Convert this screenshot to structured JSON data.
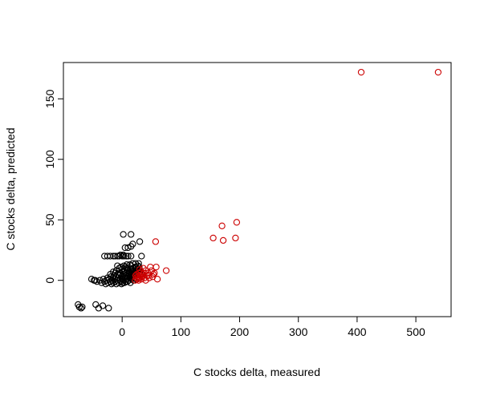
{
  "chart_data": {
    "type": "scatter",
    "title": "",
    "xlabel": "C stocks delta, measured",
    "ylabel": "C stocks delta, predicted",
    "xlim": [
      -100,
      560
    ],
    "ylim": [
      -30,
      180
    ],
    "x_ticks": [
      0,
      100,
      200,
      300,
      400,
      500
    ],
    "y_ticks": [
      0,
      50,
      100,
      150
    ],
    "grid": false,
    "legend": "none",
    "colors": {
      "black": "#000000",
      "red": "#cc0000"
    },
    "series": [
      {
        "color": "black",
        "points": [
          [
            -75,
            -20
          ],
          [
            -73,
            -22
          ],
          [
            -70,
            -23
          ],
          [
            -68,
            -22
          ],
          [
            -45,
            -20
          ],
          [
            -40,
            -23
          ],
          [
            -33,
            -21
          ],
          [
            -23,
            -23
          ],
          [
            -52,
            1
          ],
          [
            -48,
            0
          ],
          [
            -46,
            0
          ],
          [
            -43,
            -1
          ],
          [
            -38,
            0
          ],
          [
            -35,
            -2
          ],
          [
            -32,
            1
          ],
          [
            -30,
            -1
          ],
          [
            -28,
            -3
          ],
          [
            -26,
            0
          ],
          [
            -25,
            2
          ],
          [
            -24,
            -2
          ],
          [
            -22,
            1
          ],
          [
            -20,
            -1
          ],
          [
            -19,
            3
          ],
          [
            -18,
            -3
          ],
          [
            -17,
            0
          ],
          [
            -16,
            2
          ],
          [
            -15,
            -2
          ],
          [
            -14,
            4
          ],
          [
            -13,
            1
          ],
          [
            -12,
            -1
          ],
          [
            -11,
            3
          ],
          [
            -10,
            -3
          ],
          [
            -9,
            0
          ],
          [
            -8,
            5
          ],
          [
            -7,
            2
          ],
          [
            -6,
            -2
          ],
          [
            -5,
            4
          ],
          [
            -4,
            0
          ],
          [
            -3,
            6
          ],
          [
            -2,
            -1
          ],
          [
            -1,
            3
          ],
          [
            0,
            1
          ],
          [
            1,
            -2
          ],
          [
            2,
            5
          ],
          [
            3,
            0
          ],
          [
            4,
            7
          ],
          [
            5,
            2
          ],
          [
            6,
            -1
          ],
          [
            7,
            4
          ],
          [
            8,
            1
          ],
          [
            9,
            8
          ],
          [
            10,
            3
          ],
          [
            11,
            0
          ],
          [
            12,
            6
          ],
          [
            13,
            2
          ],
          [
            14,
            9
          ],
          [
            15,
            4
          ],
          [
            16,
            1
          ],
          [
            17,
            7
          ],
          [
            18,
            3
          ],
          [
            19,
            10
          ],
          [
            20,
            5
          ],
          [
            21,
            2
          ],
          [
            22,
            8
          ],
          [
            23,
            4
          ],
          [
            24,
            11
          ],
          [
            25,
            6
          ],
          [
            26,
            3
          ],
          [
            27,
            9
          ],
          [
            28,
            5
          ],
          [
            29,
            11
          ],
          [
            30,
            7
          ],
          [
            31,
            4
          ],
          [
            -10,
            8
          ],
          [
            -5,
            10
          ],
          [
            0,
            9
          ],
          [
            5,
            11
          ],
          [
            10,
            10
          ],
          [
            15,
            12
          ],
          [
            -8,
            12
          ],
          [
            -3,
            6
          ],
          [
            2,
            8
          ],
          [
            7,
            10
          ],
          [
            12,
            7
          ],
          [
            17,
            9
          ],
          [
            22,
            11
          ],
          [
            27,
            12
          ],
          [
            -1,
            -3
          ],
          [
            4,
            -2
          ],
          [
            9,
            -1
          ],
          [
            14,
            -2
          ],
          [
            19,
            0
          ],
          [
            24,
            1
          ],
          [
            29,
            2
          ],
          [
            33,
            5
          ],
          [
            -20,
            5
          ],
          [
            -15,
            7
          ],
          [
            -6,
            5
          ],
          [
            1,
            4
          ],
          [
            6,
            6
          ],
          [
            11,
            4
          ],
          [
            16,
            5
          ],
          [
            21,
            6
          ],
          [
            26,
            8
          ],
          [
            -12,
            6
          ],
          [
            -2,
            11
          ],
          [
            3,
            12
          ],
          [
            8,
            13
          ],
          [
            13,
            13
          ],
          [
            18,
            14
          ],
          [
            23,
            14
          ],
          [
            28,
            14
          ],
          [
            -30,
            20
          ],
          [
            -25,
            20
          ],
          [
            -20,
            20
          ],
          [
            -15,
            20
          ],
          [
            -12,
            20
          ],
          [
            -8,
            20
          ],
          [
            -5,
            20
          ],
          [
            0,
            20
          ],
          [
            3,
            20
          ],
          [
            7,
            20
          ],
          [
            10,
            20
          ],
          [
            15,
            20
          ],
          [
            -3,
            21
          ],
          [
            2,
            21
          ],
          [
            33,
            20
          ],
          [
            5,
            27
          ],
          [
            10,
            27
          ],
          [
            15,
            28
          ],
          [
            18,
            30
          ],
          [
            30,
            32
          ],
          [
            2,
            38
          ],
          [
            15,
            38
          ]
        ]
      },
      {
        "color": "red",
        "points": [
          [
            407,
            172
          ],
          [
            538,
            172
          ],
          [
            170,
            45
          ],
          [
            195,
            48
          ],
          [
            155,
            35
          ],
          [
            172,
            33
          ],
          [
            193,
            35
          ],
          [
            57,
            32
          ],
          [
            75,
            8
          ],
          [
            60,
            1
          ],
          [
            58,
            11
          ],
          [
            53,
            5
          ],
          [
            52,
            3
          ],
          [
            50,
            8
          ],
          [
            48,
            11
          ],
          [
            46,
            2
          ],
          [
            44,
            6
          ],
          [
            42,
            4
          ],
          [
            40,
            8
          ],
          [
            38,
            2
          ],
          [
            36,
            10
          ],
          [
            35,
            5
          ],
          [
            34,
            3
          ],
          [
            33,
            1
          ],
          [
            32,
            7
          ],
          [
            31,
            4
          ],
          [
            30,
            2
          ],
          [
            29,
            6
          ],
          [
            28,
            0
          ],
          [
            27,
            3
          ],
          [
            26,
            1
          ],
          [
            25,
            5
          ],
          [
            24,
            2
          ],
          [
            23,
            4
          ],
          [
            22,
            0
          ],
          [
            40,
            0
          ],
          [
            45,
            4
          ],
          [
            55,
            6
          ],
          [
            38,
            6
          ],
          [
            30,
            9
          ]
        ]
      }
    ]
  }
}
